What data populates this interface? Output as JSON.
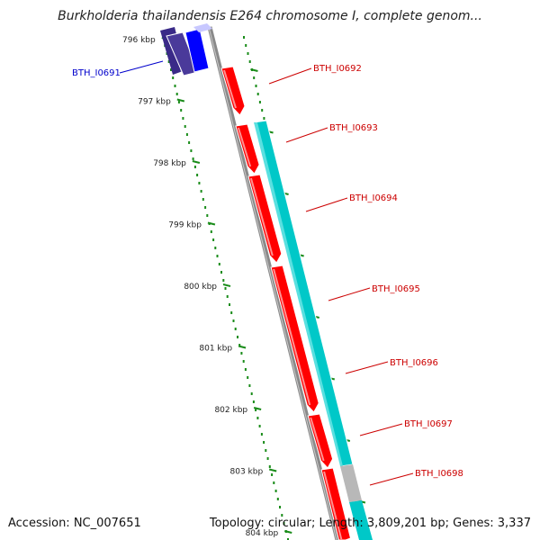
{
  "title": "Burkholderia thailandensis E264 chromosome I, complete genom...",
  "footer": {
    "accession": "Accession: NC_007651",
    "topology": "Topology: circular; Length: 3,809,201 bp; Genes: 3,337"
  },
  "ticks": [
    "796 kbp",
    "797 kbp",
    "798 kbp",
    "799 kbp",
    "800 kbp",
    "801 kbp",
    "802 kbp",
    "803 kbp",
    "804 kbp"
  ],
  "colors": {
    "forward_cds": "#ff0000",
    "reverse_cds": "#0000ff",
    "rna_track": "#00c8c8",
    "backbone": "#808080",
    "gc_dots": "#1a8c1a",
    "reverse_label": "#0000cc",
    "forward_label": "#cc0000"
  },
  "genes": [
    {
      "id": "BTH_I0691",
      "strand": "-",
      "color": "#0000ff"
    },
    {
      "id": "BTH_I0692",
      "strand": "+",
      "color": "#ff0000"
    },
    {
      "id": "BTH_I0693",
      "strand": "+",
      "color": "#ff0000"
    },
    {
      "id": "BTH_I0694",
      "strand": "+",
      "color": "#ff0000"
    },
    {
      "id": "BTH_I0695",
      "strand": "+",
      "color": "#ff0000"
    },
    {
      "id": "BTH_I0696",
      "strand": "+",
      "color": "#ff0000"
    },
    {
      "id": "BTH_I0697",
      "strand": "+",
      "color": "#ff0000"
    },
    {
      "id": "BTH_I0698",
      "strand": "+",
      "color": "#ff0000"
    }
  ]
}
